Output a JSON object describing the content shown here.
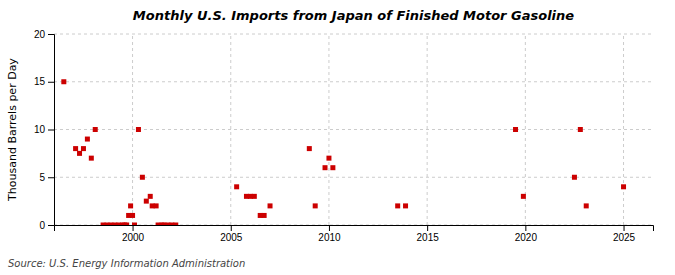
{
  "chart_data": {
    "type": "scatter",
    "title": "Monthly U.S. Imports from Japan of Finished Motor Gasoline",
    "ylabel": "Thousand Barrels per Day",
    "annotations": [
      "Source: U.S. Energy Information Administration"
    ],
    "color": "#cc0000",
    "marker": "square",
    "grid": true,
    "xlim": [
      1996.0,
      2026.5
    ],
    "xticks": [
      2000,
      2005,
      2010,
      2015,
      2020,
      2025
    ],
    "ylim": [
      0,
      20
    ],
    "yticks": [
      0,
      5,
      10,
      15,
      20
    ],
    "x": [
      1996.5,
      1997.1,
      1997.3,
      1997.5,
      1997.7,
      1997.9,
      1998.1,
      1998.5,
      1998.7,
      1998.9,
      1999.1,
      1999.3,
      1999.5,
      1999.6,
      1999.7,
      1999.8,
      1999.9,
      2000.0,
      2000.1,
      2000.3,
      2000.5,
      2000.7,
      2000.9,
      2001.0,
      2001.2,
      2001.3,
      2001.5,
      2001.6,
      2001.8,
      2002.0,
      2002.2,
      2005.3,
      2005.8,
      2006.0,
      2006.2,
      2006.5,
      2006.7,
      2007.0,
      2009.0,
      2009.3,
      2009.8,
      2010.0,
      2010.2,
      2013.5,
      2013.9,
      2019.5,
      2019.9,
      2022.5,
      2022.8,
      2023.1,
      2025.0
    ],
    "values": [
      15,
      8,
      7.5,
      8,
      9,
      7,
      10,
      0,
      0,
      0,
      0,
      0,
      0,
      0,
      0,
      1,
      2,
      1,
      0,
      10,
      5,
      2.5,
      3,
      2,
      2,
      0,
      0,
      0,
      0,
      0,
      0,
      4,
      3,
      3,
      3,
      1,
      1,
      2,
      8,
      2,
      6,
      7,
      6,
      2,
      2,
      10,
      3,
      5,
      10,
      2,
      4
    ]
  }
}
